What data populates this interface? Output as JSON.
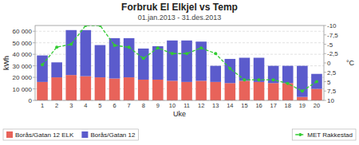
{
  "chart_data": {
    "type": "bar",
    "title": "Forbruk El Elkjel vs Temp",
    "subtitle": "01.jan.2013 - 31.des.2013",
    "x_label": "Uke",
    "y_label": "kWh",
    "y2_label": "°C",
    "categories": [
      1,
      2,
      3,
      4,
      5,
      6,
      7,
      8,
      9,
      10,
      11,
      12,
      13,
      14,
      15,
      16,
      17,
      18,
      19,
      20
    ],
    "stacked": true,
    "series": [
      {
        "name": "Borås/Gatan 12 ELK",
        "color": "#E8635A",
        "values": [
          16000,
          20000,
          22000,
          21000,
          20000,
          19000,
          20000,
          18000,
          18000,
          17000,
          16000,
          17000,
          16000,
          15000,
          17000,
          16000,
          15000,
          15000,
          3000,
          10000
        ]
      },
      {
        "name": "Borås/Gatan 12",
        "color": "#5B5BCC",
        "values": [
          23000,
          13000,
          39000,
          40000,
          28000,
          35000,
          34000,
          27000,
          29000,
          35000,
          36000,
          34000,
          14000,
          21000,
          20000,
          21000,
          15000,
          15000,
          27000,
          13000
        ]
      },
      {
        "name": "MET Rakkestad",
        "type": "line",
        "axis": "y2",
        "color": "#33CC33",
        "marker": "circle",
        "line_style": "dashed",
        "values": [
          0.5,
          -4.2,
          -5.0,
          -10.0,
          -10.0,
          -4.7,
          -4.2,
          -1.2,
          -4.0,
          -2.5,
          -2.5,
          -4.0,
          -2.5,
          1.5,
          4.5,
          4.5,
          4.5,
          5.5,
          7.5,
          5.0
        ]
      }
    ],
    "ylim": [
      0,
      65000
    ],
    "yticks": [
      0,
      {
        "value": 10000,
        "label": "10 000"
      },
      {
        "value": 20000,
        "label": "20 000"
      },
      {
        "value": 30000,
        "label": "30 000"
      },
      {
        "value": 40000,
        "label": "40 000"
      },
      {
        "value": 50000,
        "label": "50 000"
      },
      {
        "value": 60000,
        "label": "60 000"
      }
    ],
    "y2lim": [
      10,
      -10
    ],
    "y2ticks": [
      -10,
      {
        "value": -7.5,
        "label": "-7,5"
      },
      -5,
      {
        "value": -2.5,
        "label": "-2,5"
      },
      0,
      {
        "value": 2.5,
        "label": "2,5"
      },
      5,
      {
        "value": 7.5,
        "label": "7,5"
      },
      10
    ],
    "grid": true,
    "legend": "bottom"
  }
}
